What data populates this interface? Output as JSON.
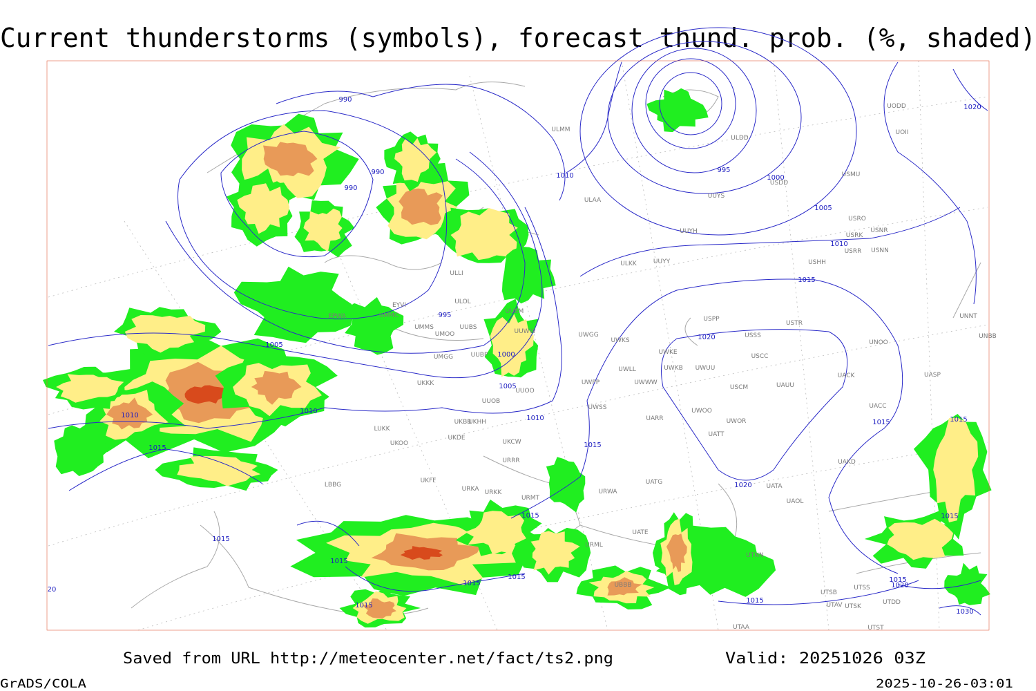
{
  "title": "Current thunderstorms (symbols), forecast thund. prob. (%, shaded)",
  "footer": {
    "saved": "Saved from URL http://meteocenter.net/fact/ts2.png",
    "valid": "Valid: 20251026 03Z",
    "software": "GrADS/COLA",
    "timestamp": "2025-10-26-03:01"
  },
  "isobar_labels": [
    "990",
    "990",
    "990",
    "995",
    "1000",
    "1005",
    "1005",
    "1010",
    "1010",
    "1010",
    "1010",
    "1015",
    "1015",
    "1015",
    "1015",
    "1015",
    "1015",
    "1015",
    "1015",
    "1015",
    "1015",
    "1015",
    "1015",
    "1015",
    "1015",
    "995",
    "1000",
    "1005",
    "1010",
    "1020",
    "1020",
    "1020",
    "1020",
    "1030",
    "20"
  ],
  "stations": [
    "ULMM",
    "ULAA",
    "ULDD",
    "UUYH",
    "USDD",
    "USMU",
    "UODD",
    "UOII",
    "USRO",
    "USRK",
    "USNR",
    "USRR",
    "USNN",
    "USHH",
    "ULKK",
    "UUYY",
    "UUEM",
    "UUWW",
    "UWGG",
    "UWKS",
    "UWKE",
    "UWWW",
    "UWPP",
    "UWSS",
    "UARR",
    "UATT",
    "URRR",
    "UKOO",
    "UKKK",
    "UUBP",
    "UMGG",
    "UMMS",
    "UMMC",
    "ULOL",
    "UKBB",
    "UKHH",
    "UKDE",
    "UKCW",
    "UKFF",
    "URKA",
    "URKK",
    "URMT",
    "URML",
    "UATG",
    "URWA",
    "UATE",
    "UATA",
    "UAOL",
    "UAKD",
    "UACC",
    "USPP",
    "USTR",
    "USSS",
    "USCC",
    "USCM",
    "UAUU",
    "UWOO",
    "UWOR",
    "UACK",
    "UNOO",
    "UNNT",
    "UNBB",
    "UASP",
    "UTNN",
    "UTSB",
    "UTSS",
    "UTAV",
    "UTSK",
    "UTDD",
    "UTST",
    "UTAA",
    "UBBB",
    "LUKK",
    "LBBG",
    "EPWA",
    "EYVI",
    "UUOB",
    "UUOO",
    "UMOO",
    "UUBS",
    "ULLI",
    "UUYS",
    "UWLL",
    "UWKB",
    "UWUU"
  ]
}
